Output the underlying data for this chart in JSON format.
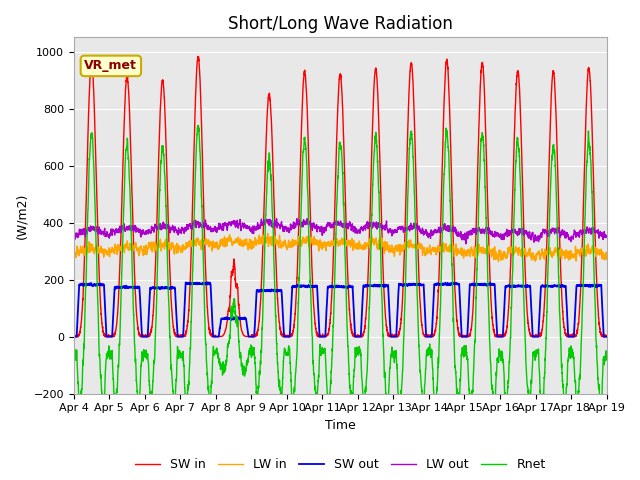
{
  "title": "Short/Long Wave Radiation",
  "ylabel": "(W/m2)",
  "xlabel": "Time",
  "xlim_start": 0,
  "xlim_end": 15,
  "ylim": [
    -200,
    1050
  ],
  "yticks": [
    -200,
    0,
    200,
    400,
    600,
    800,
    1000
  ],
  "xtick_labels": [
    "Apr 4",
    "Apr 5",
    "Apr 6",
    "Apr 7",
    "Apr 8",
    "Apr 9",
    "Apr 10",
    "Apr 11",
    "Apr 12",
    "Apr 13",
    "Apr 14",
    "Apr 15",
    "Apr 16",
    "Apr 17",
    "Apr 18",
    "Apr 19"
  ],
  "legend_labels": [
    "SW in",
    "LW in",
    "SW out",
    "LW out",
    "Rnet"
  ],
  "colors": {
    "SW_in": "#ff0000",
    "LW_in": "#ffa500",
    "SW_out": "#0000ee",
    "LW_out": "#aa00cc",
    "Rnet": "#00cc00"
  },
  "annotation_text": "VR_met",
  "bg_color": "#e8e8e8",
  "title_fontsize": 12,
  "axis_fontsize": 9,
  "tick_fontsize": 8,
  "legend_fontsize": 9
}
